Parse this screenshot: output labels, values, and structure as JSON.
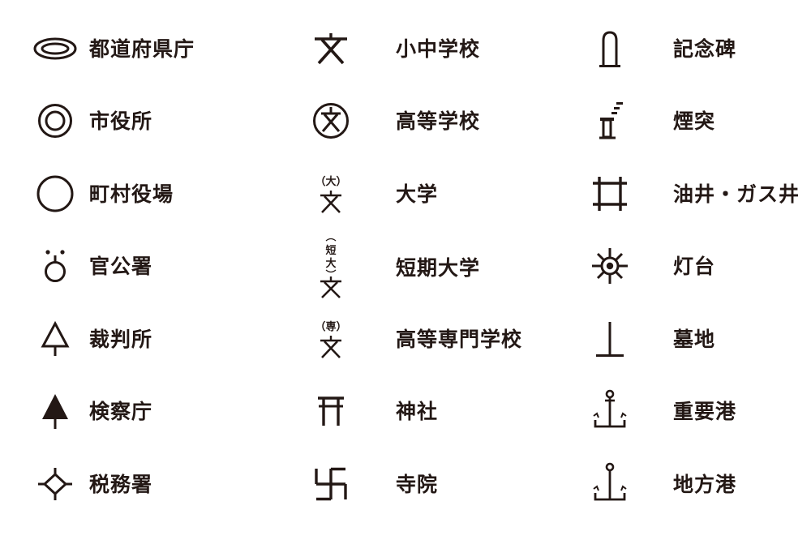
{
  "legend": {
    "col1": [
      {
        "label": "都道府県庁",
        "icon": "prefectural-office-icon"
      },
      {
        "label": "市役所",
        "icon": "city-hall-icon"
      },
      {
        "label": "町村役場",
        "icon": "town-village-office-icon"
      },
      {
        "label": "官公署",
        "icon": "government-office-icon"
      },
      {
        "label": "裁判所",
        "icon": "courthouse-icon"
      },
      {
        "label": "検察庁",
        "icon": "public-prosecutors-office-icon"
      },
      {
        "label": "税務署",
        "icon": "tax-office-icon"
      }
    ],
    "col2": [
      {
        "label": "小中学校",
        "icon": "elementary-junior-high-school-icon"
      },
      {
        "label": "高等学校",
        "icon": "high-school-icon"
      },
      {
        "label": "大学",
        "icon": "university-icon",
        "symbol_text": "（大）"
      },
      {
        "label": "短期大学",
        "icon": "junior-college-icon",
        "symbol_text": [
          "短",
          "大"
        ]
      },
      {
        "label": "高等専門学校",
        "icon": "technical-college-icon",
        "symbol_text": "（専）"
      },
      {
        "label": "神社",
        "icon": "shrine-icon"
      },
      {
        "label": "寺院",
        "icon": "temple-icon"
      }
    ],
    "col3": [
      {
        "label": "記念碑",
        "icon": "monument-icon"
      },
      {
        "label": "煙突",
        "icon": "chimney-icon"
      },
      {
        "label": "油井・ガス井",
        "icon": "oil-gas-well-icon"
      },
      {
        "label": "灯台",
        "icon": "lighthouse-icon"
      },
      {
        "label": "墓地",
        "icon": "cemetery-icon"
      },
      {
        "label": "重要港",
        "icon": "major-port-icon"
      },
      {
        "label": "地方港",
        "icon": "local-port-icon"
      }
    ]
  }
}
